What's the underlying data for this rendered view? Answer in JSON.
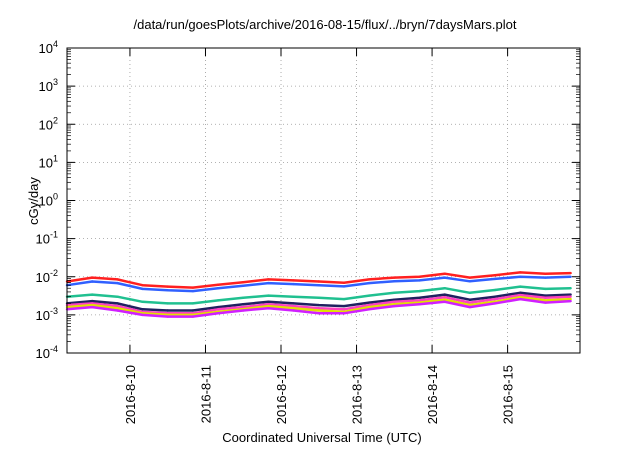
{
  "chart_data": {
    "type": "line",
    "title": "/data/run/goesPlots/archive/2016-08-15/flux/../bryn/7daysMars.plot",
    "xlabel": "Coordinated Universal Time (UTC)",
    "ylabel": "cGy/day",
    "yscale": "log",
    "ylim": [
      0.0001,
      10000
    ],
    "y_ticks": [
      {
        "base": "10",
        "exp": "-4"
      },
      {
        "base": "10",
        "exp": "-3"
      },
      {
        "base": "10",
        "exp": "-2"
      },
      {
        "base": "10",
        "exp": "-1"
      },
      {
        "base": "10",
        "exp": "0"
      },
      {
        "base": "10",
        "exp": "1"
      },
      {
        "base": "10",
        "exp": "2"
      },
      {
        "base": "10",
        "exp": "3"
      },
      {
        "base": "10",
        "exp": "4"
      }
    ],
    "x_start": "2016-08-09T04:00",
    "x_end": "2016-08-15T23:00",
    "x_tick_labels": [
      "2016-8-10",
      "2016-8-11",
      "2016-8-12",
      "2016-8-13",
      "2016-8-14",
      "2016-8-15"
    ],
    "x": [
      "2016-08-09T04:00",
      "2016-08-09T12:00",
      "2016-08-09T20:00",
      "2016-08-10T04:00",
      "2016-08-10T12:00",
      "2016-08-10T20:00",
      "2016-08-11T04:00",
      "2016-08-11T12:00",
      "2016-08-11T20:00",
      "2016-08-12T04:00",
      "2016-08-12T12:00",
      "2016-08-12T20:00",
      "2016-08-13T04:00",
      "2016-08-13T12:00",
      "2016-08-13T20:00",
      "2016-08-14T04:00",
      "2016-08-14T12:00",
      "2016-08-14T20:00",
      "2016-08-15T04:00",
      "2016-08-15T12:00",
      "2016-08-15T20:00"
    ],
    "grid": true,
    "legend": "none",
    "series": [
      {
        "color": "#ff2020",
        "values": [
          0.0075,
          0.0095,
          0.0085,
          0.006,
          0.0055,
          0.0052,
          0.0062,
          0.0072,
          0.0085,
          0.008,
          0.0075,
          0.007,
          0.0085,
          0.0095,
          0.01,
          0.012,
          0.0095,
          0.011,
          0.013,
          0.012,
          0.0125
        ]
      },
      {
        "color": "#3060ff",
        "values": [
          0.006,
          0.0075,
          0.0068,
          0.0048,
          0.0044,
          0.0042,
          0.005,
          0.0058,
          0.0068,
          0.0064,
          0.006,
          0.0056,
          0.0068,
          0.0076,
          0.008,
          0.0095,
          0.0076,
          0.0088,
          0.01,
          0.0095,
          0.01
        ]
      },
      {
        "color": "#20c090",
        "values": [
          0.003,
          0.0034,
          0.003,
          0.0022,
          0.002,
          0.002,
          0.0024,
          0.0028,
          0.0032,
          0.003,
          0.0028,
          0.0026,
          0.0032,
          0.0038,
          0.0042,
          0.005,
          0.0038,
          0.0045,
          0.0055,
          0.0048,
          0.005
        ]
      },
      {
        "color": "#202060",
        "values": [
          0.002,
          0.0023,
          0.002,
          0.0014,
          0.0013,
          0.0013,
          0.0016,
          0.0019,
          0.0022,
          0.002,
          0.0018,
          0.0017,
          0.0021,
          0.0025,
          0.0028,
          0.0034,
          0.0025,
          0.003,
          0.0038,
          0.0032,
          0.0034
        ]
      },
      {
        "color": "#ff40c0",
        "values": [
          0.0018,
          0.002,
          0.0017,
          0.0012,
          0.0011,
          0.0011,
          0.0014,
          0.0016,
          0.0019,
          0.0017,
          0.0015,
          0.0014,
          0.0018,
          0.0022,
          0.0024,
          0.0029,
          0.0021,
          0.0026,
          0.0033,
          0.0028,
          0.003
        ]
      },
      {
        "color": "#e0e000",
        "values": [
          0.0016,
          0.0018,
          0.0015,
          0.0011,
          0.001,
          0.001,
          0.0012,
          0.0014,
          0.0017,
          0.0015,
          0.0013,
          0.0012,
          0.0016,
          0.0019,
          0.0021,
          0.0025,
          0.0018,
          0.0022,
          0.0029,
          0.0024,
          0.0026
        ]
      },
      {
        "color": "#d020ff",
        "values": [
          0.0014,
          0.0016,
          0.0013,
          0.001,
          0.0009,
          0.0009,
          0.0011,
          0.0013,
          0.0015,
          0.0013,
          0.0011,
          0.0011,
          0.0014,
          0.0017,
          0.0019,
          0.0022,
          0.0016,
          0.002,
          0.0026,
          0.0021,
          0.0023
        ]
      }
    ]
  }
}
